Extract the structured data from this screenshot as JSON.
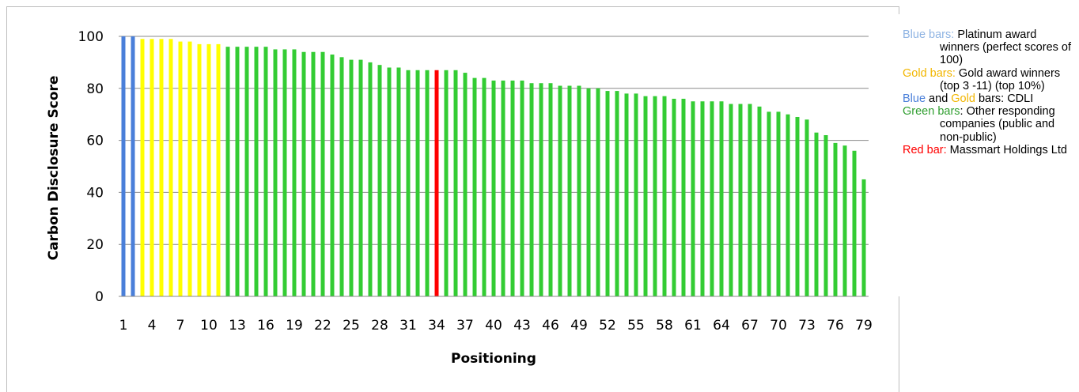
{
  "chart_data": {
    "type": "bar",
    "title": "",
    "xlabel": "Positioning",
    "ylabel": "Carbon Disclosure Score",
    "ylim": [
      0,
      100
    ],
    "yticks": [
      0,
      20,
      40,
      60,
      80,
      100
    ],
    "xtick_labels": [
      "1",
      "4",
      "7",
      "10",
      "13",
      "16",
      "19",
      "22",
      "25",
      "28",
      "31",
      "34",
      "37",
      "40",
      "43",
      "46",
      "49",
      "52",
      "55",
      "58",
      "61",
      "64",
      "67",
      "70",
      "73",
      "76",
      "79"
    ],
    "grid": true,
    "legend_position": "right",
    "colors": {
      "blue": "#4a7fd9",
      "gold": "#ffff00",
      "green": "#33cc33",
      "red": "#ff0000"
    },
    "bar_colors": [
      "blue",
      "blue",
      "gold",
      "gold",
      "gold",
      "gold",
      "gold",
      "gold",
      "gold",
      "gold",
      "gold",
      "green",
      "green",
      "green",
      "green",
      "green",
      "green",
      "green",
      "green",
      "green",
      "green",
      "green",
      "green",
      "green",
      "green",
      "green",
      "green",
      "green",
      "green",
      "green",
      "green",
      "green",
      "green",
      "red",
      "green",
      "green",
      "green",
      "green",
      "green",
      "green",
      "green",
      "green",
      "green",
      "green",
      "green",
      "green",
      "green",
      "green",
      "green",
      "green",
      "green",
      "green",
      "green",
      "green",
      "green",
      "green",
      "green",
      "green",
      "green",
      "green",
      "green",
      "green",
      "green",
      "green",
      "green",
      "green",
      "green",
      "green",
      "green",
      "green",
      "green",
      "green",
      "green",
      "green",
      "green",
      "green",
      "green",
      "green",
      "green"
    ],
    "categories": [
      1,
      2,
      3,
      4,
      5,
      6,
      7,
      8,
      9,
      10,
      11,
      12,
      13,
      14,
      15,
      16,
      17,
      18,
      19,
      20,
      21,
      22,
      23,
      24,
      25,
      26,
      27,
      28,
      29,
      30,
      31,
      32,
      33,
      34,
      35,
      36,
      37,
      38,
      39,
      40,
      41,
      42,
      43,
      44,
      45,
      46,
      47,
      48,
      49,
      50,
      51,
      52,
      53,
      54,
      55,
      56,
      57,
      58,
      59,
      60,
      61,
      62,
      63,
      64,
      65,
      66,
      67,
      68,
      69,
      70,
      71,
      72,
      73,
      74,
      75,
      76,
      77,
      78,
      79
    ],
    "values": [
      100,
      100,
      99,
      99,
      99,
      99,
      98,
      98,
      97,
      97,
      97,
      96,
      96,
      96,
      96,
      96,
      95,
      95,
      95,
      94,
      94,
      94,
      93,
      92,
      91,
      91,
      90,
      89,
      88,
      88,
      87,
      87,
      87,
      87,
      87,
      87,
      86,
      84,
      84,
      83,
      83,
      83,
      83,
      82,
      82,
      82,
      81,
      81,
      81,
      80,
      80,
      79,
      79,
      78,
      78,
      77,
      77,
      77,
      76,
      76,
      75,
      75,
      75,
      75,
      74,
      74,
      74,
      73,
      71,
      71,
      70,
      69,
      68,
      63,
      62,
      59,
      58,
      56,
      45
    ]
  },
  "legend": [
    {
      "parts": [
        {
          "text": "Blue bars:",
          "color": "#8fb4e3"
        },
        {
          "text": " Platinum award winners (perfect scores of 100)",
          "color": "#000000"
        }
      ]
    },
    {
      "parts": [
        {
          "text": "Gold bars:",
          "color": "#f2b600"
        },
        {
          "text": " Gold award winners (top 3 -11) (top 10%)",
          "color": "#000000"
        }
      ]
    },
    {
      "parts": [
        {
          "text": "Blue",
          "color": "#4a7fd9"
        },
        {
          "text": " and ",
          "color": "#000000"
        },
        {
          "text": "Gold",
          "color": "#f2b600"
        },
        {
          "text": " bars: CDLI",
          "color": "#000000"
        }
      ]
    },
    {
      "parts": [
        {
          "text": "Green bars",
          "color": "#2f9e2f"
        },
        {
          "text": ": Other responding companies (public and non-public)",
          "color": "#000000"
        }
      ]
    },
    {
      "parts": [
        {
          "text": "Red bar:",
          "color": "#ff0000"
        },
        {
          "text": " Massmart Holdings Ltd",
          "color": "#000000"
        }
      ]
    }
  ]
}
